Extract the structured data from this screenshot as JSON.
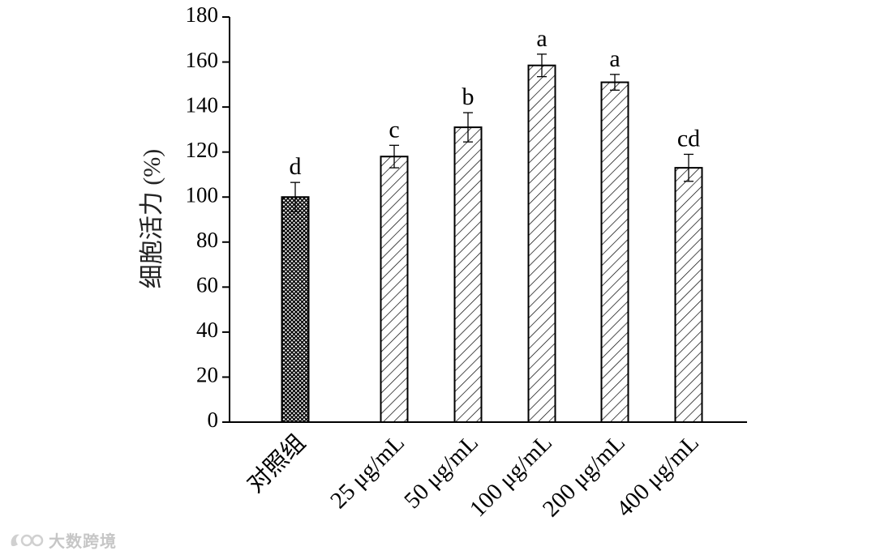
{
  "chart_data": {
    "type": "bar",
    "title": "",
    "xlabel": "",
    "ylabel": "细胞活力 (%)",
    "ylim": [
      0,
      180
    ],
    "yticks": [
      0,
      20,
      40,
      60,
      80,
      100,
      120,
      140,
      160,
      180
    ],
    "grid": false,
    "legend": "none",
    "categories": [
      "对照组",
      "25 μg/mL",
      "50 μg/mL",
      "100 μg/mL",
      "200 μg/mL",
      "400 μg/mL"
    ],
    "values": [
      100,
      118,
      131,
      158.5,
      151,
      113
    ],
    "errors": [
      6.5,
      5,
      6.5,
      5,
      3.5,
      6
    ],
    "significance": [
      "d",
      "c",
      "b",
      "a",
      "a",
      "cd"
    ],
    "patterns": [
      "crosshatch",
      "diagonal",
      "diagonal",
      "diagonal",
      "diagonal",
      "diagonal"
    ],
    "colors": {
      "bar_edge": "#000000",
      "bar_fill": "#ffffff",
      "hatch": "#000000"
    }
  },
  "watermark": {
    "text": "大数跨境",
    "icon": "logo-icon"
  }
}
